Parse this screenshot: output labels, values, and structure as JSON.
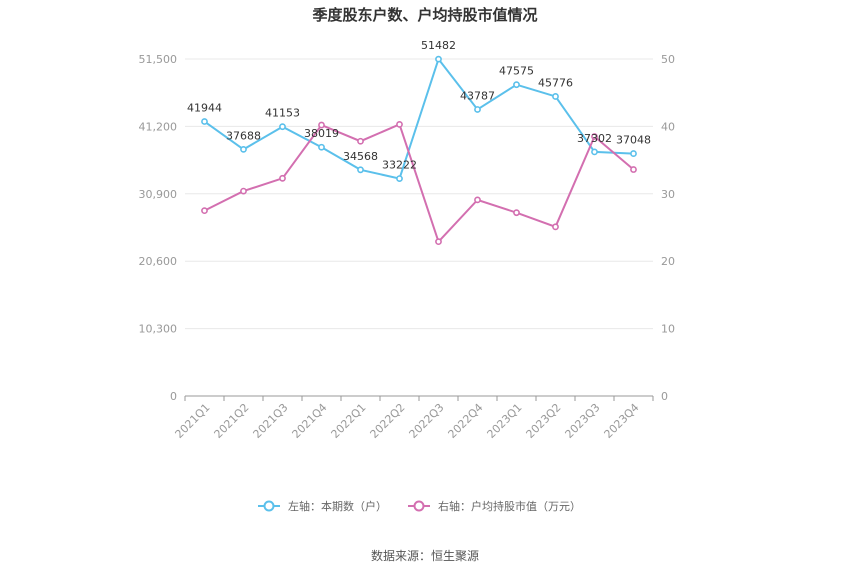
{
  "chart_data": {
    "type": "line",
    "title": "季度股东户数、户均持股市值情况",
    "categories": [
      "2021Q1",
      "2021Q2",
      "2021Q3",
      "2021Q4",
      "2022Q1",
      "2022Q2",
      "2022Q3",
      "2022Q4",
      "2023Q1",
      "2023Q2",
      "2023Q3",
      "2023Q4"
    ],
    "series": [
      {
        "name": "左轴：本期数（户）",
        "axis": "left",
        "color": "#5bc0eb",
        "values": [
          41944,
          37688,
          41153,
          38019,
          34568,
          33222,
          51482,
          43787,
          47575,
          45776,
          37302,
          37048
        ],
        "labels": [
          "41944",
          "37688",
          "41153",
          "38019",
          "34568",
          "33222",
          "51482",
          "43787",
          "47575",
          "45776",
          "37302",
          "37048"
        ]
      },
      {
        "name": "右轴：户均持股市值（万元）",
        "axis": "right",
        "color": "#d36fb0",
        "values": [
          27.5,
          30.4,
          32.3,
          40.2,
          37.8,
          40.3,
          22.9,
          29.1,
          27.2,
          25.1,
          38.5,
          33.6
        ]
      }
    ],
    "left_axis": {
      "ylim": [
        0,
        51500
      ],
      "ticks": [
        "0",
        "10,300",
        "20,600",
        "30,900",
        "41,200",
        "51,500"
      ]
    },
    "right_axis": {
      "ylim": [
        0,
        50
      ],
      "ticks": [
        "0",
        "10",
        "20",
        "30",
        "40",
        "50"
      ]
    },
    "grid": true,
    "legend_position": "bottom",
    "source": "数据来源：恒生聚源"
  }
}
